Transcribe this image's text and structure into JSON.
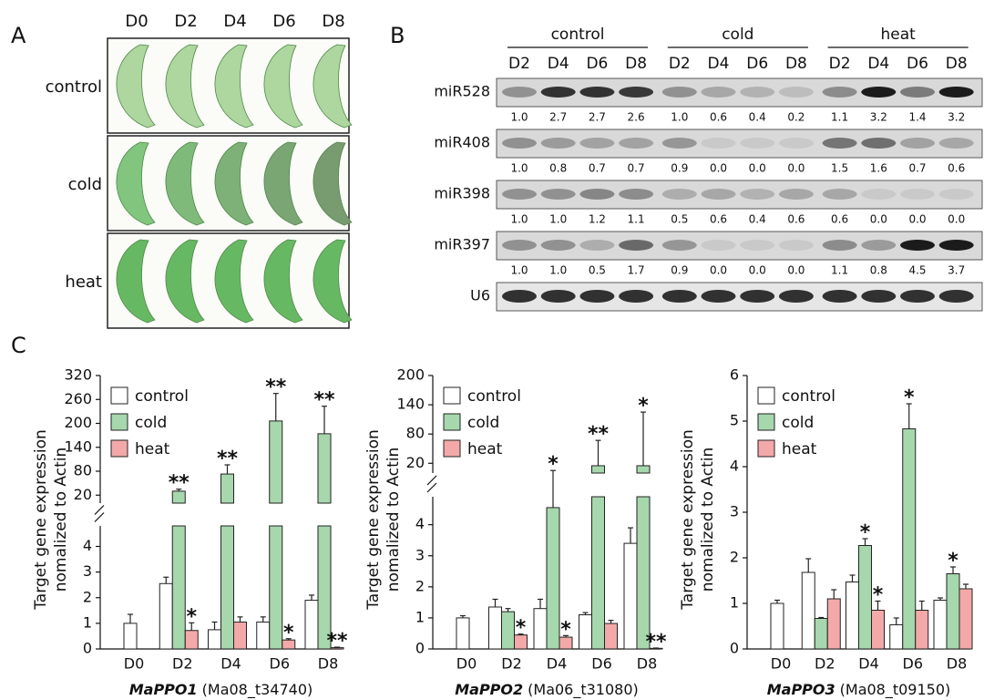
{
  "panel_a": {
    "label": "A",
    "columns": [
      "D0",
      "D2",
      "D4",
      "D6",
      "D8"
    ],
    "rows": [
      "control",
      "cold",
      "heat"
    ]
  },
  "panel_b": {
    "label": "B",
    "groups": [
      "control",
      "cold",
      "heat"
    ],
    "lanes": [
      "D2",
      "D4",
      "D6",
      "D8",
      "D2",
      "D4",
      "D6",
      "D8",
      "D2",
      "D4",
      "D6",
      "D8"
    ],
    "rows": [
      {
        "name": "miR528",
        "values": [
          "1.0",
          "2.7",
          "2.7",
          "2.6",
          "1.0",
          "0.6",
          "0.4",
          "0.2",
          "1.1",
          "3.2",
          "1.4",
          "3.2"
        ]
      },
      {
        "name": "miR408",
        "values": [
          "1.0",
          "0.8",
          "0.7",
          "0.7",
          "0.9",
          "0.0",
          "0.0",
          "0.0",
          "1.5",
          "1.6",
          "0.7",
          "0.6"
        ]
      },
      {
        "name": "miR398",
        "values": [
          "1.0",
          "1.0",
          "1.2",
          "1.1",
          "0.5",
          "0.6",
          "0.4",
          "0.6",
          "0.6",
          "0.0",
          "0.0",
          "0.0"
        ]
      },
      {
        "name": "miR397",
        "values": [
          "1.0",
          "1.0",
          "0.5",
          "1.7",
          "0.9",
          "0.0",
          "0.0",
          "0.0",
          "1.1",
          "0.8",
          "4.5",
          "3.7"
        ]
      },
      {
        "name": "U6"
      }
    ]
  },
  "panel_c": {
    "label": "C"
  },
  "chart_data": [
    {
      "type": "bar",
      "title": "MaPPO1",
      "title_id": "(Ma08_t34740)",
      "y_label": [
        "Target gene expression",
        "nomalized to Actin"
      ],
      "categories": [
        "D0",
        "D2",
        "D4",
        "D6",
        "D8"
      ],
      "axis_break": true,
      "ylim": [
        0,
        4.8
      ],
      "yticks": [
        0,
        1,
        2,
        3,
        4
      ],
      "ylim_upper": [
        0,
        320
      ],
      "yticks_upper": [
        20,
        80,
        140,
        200,
        260,
        320
      ],
      "legend": "upper left",
      "series": [
        {
          "name": "control",
          "color": "#ffffff",
          "values": [
            1.0,
            2.55,
            0.75,
            1.05,
            1.9
          ],
          "errors": [
            0.35,
            0.25,
            0.3,
            0.2,
            0.2
          ]
        },
        {
          "name": "cold",
          "color": "#a6d7ad",
          "values": [
            null,
            30,
            73,
            206,
            174
          ],
          "errors": [
            null,
            5,
            23,
            69,
            69
          ],
          "annotations": [
            null,
            "**",
            "**",
            "**",
            "**"
          ]
        },
        {
          "name": "heat",
          "color": "#f3a9a9",
          "values": [
            null,
            0.72,
            1.05,
            0.35,
            0.05
          ],
          "errors": [
            null,
            0.3,
            0.2,
            0.05,
            0.02
          ],
          "annotations": [
            null,
            "*",
            null,
            "*",
            "**"
          ]
        }
      ]
    },
    {
      "type": "bar",
      "title": "MaPPO2",
      "title_id": "(Ma06_t31080)",
      "y_label": [
        "Target gene expression",
        "nomalized to Actin"
      ],
      "categories": [
        "D0",
        "D2",
        "D4",
        "D6",
        "D8"
      ],
      "axis_break": true,
      "ylim": [
        0,
        4.9
      ],
      "yticks": [
        0,
        1,
        2,
        3,
        4
      ],
      "ylim_upper": [
        0,
        200
      ],
      "yticks_upper": [
        20,
        80,
        140,
        200
      ],
      "legend": "upper left",
      "series": [
        {
          "name": "control",
          "color": "#ffffff",
          "values": [
            1.0,
            1.35,
            1.3,
            1.1,
            3.4
          ],
          "errors": [
            0.07,
            0.25,
            0.3,
            0.07,
            0.5
          ]
        },
        {
          "name": "cold",
          "color": "#a6d7ad",
          "values": [
            null,
            1.2,
            4.55,
            15,
            15
          ],
          "errors": [
            null,
            0.1,
            0.7,
            52,
            110
          ],
          "annotations": [
            null,
            null,
            "*",
            "**",
            "*"
          ]
        },
        {
          "name": "heat",
          "color": "#f3a9a9",
          "values": [
            null,
            0.45,
            0.38,
            0.82,
            0.02
          ],
          "errors": [
            null,
            0.03,
            0.05,
            0.1,
            0.01
          ],
          "annotations": [
            null,
            "*",
            "*",
            null,
            "**"
          ]
        }
      ]
    },
    {
      "type": "bar",
      "title": "MaPPO3",
      "title_id": "(Ma08_t09150)",
      "y_label": [
        "Target gene expression",
        "nomalized to Actin"
      ],
      "categories": [
        "D0",
        "D2",
        "D4",
        "D6",
        "D8"
      ],
      "axis_break": false,
      "ylim": [
        0,
        6
      ],
      "yticks": [
        0,
        1,
        2,
        3,
        4,
        5,
        6
      ],
      "legend": "upper left",
      "series": [
        {
          "name": "control",
          "color": "#ffffff",
          "values": [
            1.0,
            1.68,
            1.47,
            0.53,
            1.07
          ],
          "errors": [
            0.07,
            0.3,
            0.15,
            0.15,
            0.05
          ]
        },
        {
          "name": "cold",
          "color": "#a6d7ad",
          "values": [
            null,
            0.67,
            2.27,
            4.83,
            1.65
          ],
          "errors": [
            null,
            0.02,
            0.15,
            0.55,
            0.15
          ],
          "annotations": [
            null,
            null,
            "*",
            "*",
            "*"
          ]
        },
        {
          "name": "heat",
          "color": "#f3a9a9",
          "values": [
            null,
            1.1,
            0.85,
            0.85,
            1.32
          ],
          "errors": [
            null,
            0.2,
            0.2,
            0.2,
            0.1
          ],
          "annotations": [
            null,
            null,
            "*",
            null,
            null
          ]
        }
      ]
    }
  ]
}
